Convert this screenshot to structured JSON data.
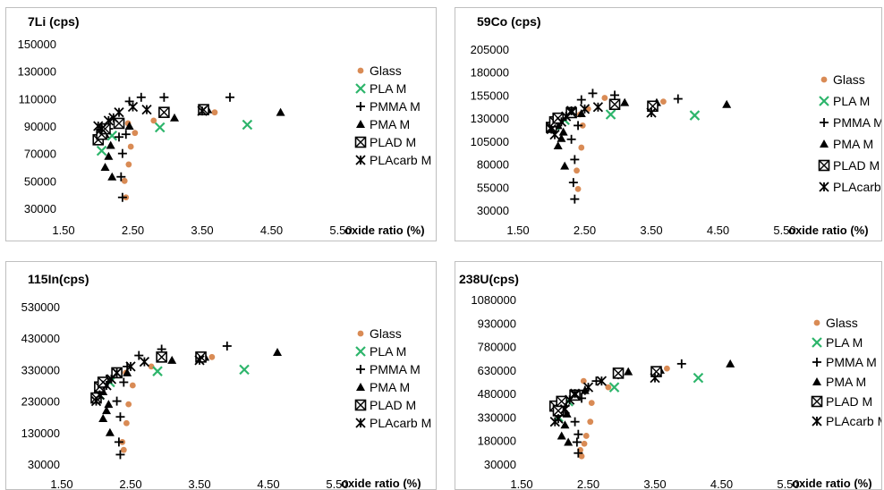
{
  "chart_data": [
    {
      "type": "scatter",
      "title": "7Li (cps)",
      "xlabel": "oxide ratio (%)",
      "ylabel": "",
      "xlim": [
        1.5,
        5.5
      ],
      "ylim": [
        30000,
        150000
      ],
      "xticks": [
        "1.50",
        "2.50",
        "3.50",
        "4.50",
        "5.50"
      ],
      "yticks": [
        "150000",
        "130000",
        "110000",
        "90000",
        "70000",
        "50000",
        "30000"
      ],
      "legend_position": "right",
      "series": [
        {
          "name": "Glass",
          "marker": "circle",
          "color": "#D98B55",
          "points": [
            [
              2.4,
              38000
            ],
            [
              2.38,
              50000
            ],
            [
              2.44,
              62000
            ],
            [
              2.47,
              75000
            ],
            [
              2.53,
              85000
            ],
            [
              2.8,
              94000
            ],
            [
              2.43,
              92000
            ],
            [
              3.68,
              100000
            ]
          ]
        },
        {
          "name": "PLA M",
          "marker": "x",
          "color": "#2DB56B",
          "points": [
            [
              2.05,
              72000
            ],
            [
              2.2,
              83000
            ],
            [
              2.89,
              89000
            ],
            [
              4.15,
              91000
            ]
          ]
        },
        {
          "name": "PMMA M",
          "marker": "plus",
          "color": "#000000",
          "points": [
            [
              2.35,
              38000
            ],
            [
              2.33,
              53000
            ],
            [
              2.35,
              70000
            ],
            [
              2.3,
              82000
            ],
            [
              2.4,
              84000
            ],
            [
              2.15,
              88000
            ],
            [
              2.45,
              108000
            ],
            [
              2.62,
              111000
            ],
            [
              2.95,
              111000
            ],
            [
              3.9,
              111000
            ]
          ]
        },
        {
          "name": "PMA M",
          "marker": "triangle",
          "color": "#000000",
          "points": [
            [
              2.2,
              53000
            ],
            [
              2.1,
              60000
            ],
            [
              2.15,
              68000
            ],
            [
              2.18,
              76000
            ],
            [
              2.1,
              84000
            ],
            [
              2.45,
              90000
            ],
            [
              3.1,
              96000
            ],
            [
              3.58,
              102000
            ],
            [
              4.63,
              100000
            ]
          ]
        },
        {
          "name": "PLAD M",
          "marker": "boxx",
          "color": "#000000",
          "points": [
            [
              2.0,
              80000
            ],
            [
              2.05,
              84000
            ],
            [
              2.1,
              88000
            ],
            [
              2.3,
              92000
            ],
            [
              2.95,
              100000
            ],
            [
              3.52,
              102000
            ]
          ]
        },
        {
          "name": "PLAcarb M",
          "marker": "star",
          "color": "#000000",
          "points": [
            [
              2.0,
              90000
            ],
            [
              2.05,
              88000
            ],
            [
              2.15,
              94000
            ],
            [
              2.22,
              96000
            ],
            [
              2.3,
              100000
            ],
            [
              2.5,
              104000
            ],
            [
              2.7,
              102000
            ],
            [
              3.5,
              101000
            ]
          ]
        }
      ]
    },
    {
      "type": "scatter",
      "title": "59Co (cps)",
      "xlabel": "oxide ratio (%)",
      "ylabel": "",
      "xlim": [
        1.5,
        5.5
      ],
      "ylim": [
        30000,
        205000
      ],
      "xticks": [
        "1.50",
        "2.50",
        "3.50",
        "4.50",
        "5.50"
      ],
      "yticks": [
        "205000",
        "180000",
        "155000",
        "130000",
        "105000",
        "80000",
        "55000",
        "30000"
      ],
      "legend_position": "right",
      "series": [
        {
          "name": "Glass",
          "marker": "circle",
          "color": "#D98B55",
          "points": [
            [
              2.4,
              53000
            ],
            [
              2.38,
              73000
            ],
            [
              2.45,
              98000
            ],
            [
              2.47,
              122000
            ],
            [
              2.55,
              140000
            ],
            [
              2.8,
              152000
            ],
            [
              2.43,
              134000
            ],
            [
              3.68,
              148000
            ]
          ]
        },
        {
          "name": "PLA M",
          "marker": "x",
          "color": "#2DB56B",
          "points": [
            [
              2.05,
              122000
            ],
            [
              2.2,
              128000
            ],
            [
              2.89,
              134000
            ],
            [
              4.15,
              133000
            ]
          ]
        },
        {
          "name": "PMMA M",
          "marker": "plus",
          "color": "#000000",
          "points": [
            [
              2.35,
              42000
            ],
            [
              2.33,
              60000
            ],
            [
              2.35,
              85000
            ],
            [
              2.3,
              107000
            ],
            [
              2.4,
              122000
            ],
            [
              2.15,
              128000
            ],
            [
              2.45,
              150000
            ],
            [
              2.62,
              157000
            ],
            [
              2.95,
              155000
            ],
            [
              3.9,
              151000
            ]
          ]
        },
        {
          "name": "PMA M",
          "marker": "triangle",
          "color": "#000000",
          "points": [
            [
              2.2,
              78000
            ],
            [
              2.1,
              100000
            ],
            [
              2.15,
              108000
            ],
            [
              2.18,
              115000
            ],
            [
              2.1,
              122000
            ],
            [
              2.45,
              135000
            ],
            [
              3.1,
              147000
            ],
            [
              3.58,
              147000
            ],
            [
              4.63,
              145000
            ]
          ]
        },
        {
          "name": "PLAD M",
          "marker": "boxx",
          "color": "#000000",
          "points": [
            [
              2.0,
              120000
            ],
            [
              2.05,
              126000
            ],
            [
              2.1,
              130000
            ],
            [
              2.3,
              136000
            ],
            [
              2.95,
              145000
            ],
            [
              3.52,
              143000
            ]
          ]
        },
        {
          "name": "PLAcarb M",
          "marker": "star",
          "color": "#000000",
          "points": [
            [
              2.0,
              118000
            ],
            [
              2.05,
              112000
            ],
            [
              2.15,
              126000
            ],
            [
              2.22,
              132000
            ],
            [
              2.3,
              138000
            ],
            [
              2.5,
              140000
            ],
            [
              2.7,
              142000
            ],
            [
              3.5,
              136000
            ]
          ]
        }
      ]
    },
    {
      "type": "scatter",
      "title": "115In(cps)",
      "xlabel": "oxide ratio (%)",
      "ylabel": "",
      "xlim": [
        1.5,
        5.5
      ],
      "ylim": [
        30000,
        530000
      ],
      "xticks": [
        "1.50",
        "2.50",
        "3.50",
        "4.50",
        "5.50"
      ],
      "yticks": [
        "530000",
        "430000",
        "330000",
        "230000",
        "130000",
        "30000"
      ],
      "legend_position": "right",
      "series": [
        {
          "name": "Glass",
          "marker": "circle",
          "color": "#D98B55",
          "points": [
            [
              2.4,
              75000
            ],
            [
              2.38,
              100000
            ],
            [
              2.44,
              160000
            ],
            [
              2.47,
              220000
            ],
            [
              2.53,
              280000
            ],
            [
              2.8,
              340000
            ],
            [
              2.43,
              320000
            ],
            [
              3.68,
              370000
            ]
          ]
        },
        {
          "name": "PLA M",
          "marker": "x",
          "color": "#2DB56B",
          "points": [
            [
              2.05,
              250000
            ],
            [
              2.2,
              290000
            ],
            [
              2.89,
              325000
            ],
            [
              4.15,
              330000
            ]
          ]
        },
        {
          "name": "PMMA M",
          "marker": "plus",
          "color": "#000000",
          "points": [
            [
              2.35,
              60000
            ],
            [
              2.33,
              100000
            ],
            [
              2.35,
              180000
            ],
            [
              2.3,
              230000
            ],
            [
              2.4,
              290000
            ],
            [
              2.15,
              300000
            ],
            [
              2.45,
              340000
            ],
            [
              2.62,
              375000
            ],
            [
              2.95,
              395000
            ],
            [
              3.9,
              405000
            ]
          ]
        },
        {
          "name": "PMA M",
          "marker": "triangle",
          "color": "#000000",
          "points": [
            [
              2.2,
              130000
            ],
            [
              2.1,
              175000
            ],
            [
              2.15,
              200000
            ],
            [
              2.18,
              220000
            ],
            [
              2.1,
              260000
            ],
            [
              2.45,
              320000
            ],
            [
              3.1,
              360000
            ],
            [
              3.58,
              370000
            ],
            [
              4.63,
              385000
            ]
          ]
        },
        {
          "name": "PLAD M",
          "marker": "boxx",
          "color": "#000000",
          "points": [
            [
              2.0,
              240000
            ],
            [
              2.05,
              275000
            ],
            [
              2.1,
              290000
            ],
            [
              2.3,
              320000
            ],
            [
              2.95,
              370000
            ],
            [
              3.52,
              370000
            ]
          ]
        },
        {
          "name": "PLAcarb M",
          "marker": "star",
          "color": "#000000",
          "points": [
            [
              2.0,
              230000
            ],
            [
              2.05,
              250000
            ],
            [
              2.15,
              280000
            ],
            [
              2.22,
              300000
            ],
            [
              2.3,
              320000
            ],
            [
              2.5,
              340000
            ],
            [
              2.7,
              355000
            ],
            [
              3.5,
              360000
            ]
          ]
        }
      ]
    },
    {
      "type": "scatter",
      "title": "238U(cps)",
      "xlabel": "oxide ratio (%)",
      "ylabel": "",
      "xlim": [
        1.5,
        5.5
      ],
      "ylim": [
        30000,
        1080000
      ],
      "xticks": [
        "1.50",
        "2.50",
        "3.50",
        "4.50",
        "5.50"
      ],
      "yticks": [
        "1080000",
        "930000",
        "780000",
        "630000",
        "480000",
        "330000",
        "180000",
        "30000"
      ],
      "legend_position": "right",
      "series": [
        {
          "name": "Glass",
          "marker": "circle",
          "color": "#D98B55",
          "points": [
            [
              2.4,
              80000
            ],
            [
              2.38,
              120000
            ],
            [
              2.44,
              160000
            ],
            [
              2.47,
              210000
            ],
            [
              2.53,
              300000
            ],
            [
              2.55,
              420000
            ],
            [
              2.8,
              520000
            ],
            [
              2.43,
              560000
            ],
            [
              3.68,
              640000
            ]
          ]
        },
        {
          "name": "PLA M",
          "marker": "x",
          "color": "#2DB56B",
          "points": [
            [
              2.05,
              330000
            ],
            [
              2.2,
              430000
            ],
            [
              2.89,
              520000
            ],
            [
              4.15,
              580000
            ]
          ]
        },
        {
          "name": "PMMA M",
          "marker": "plus",
          "color": "#000000",
          "points": [
            [
              2.35,
              100000
            ],
            [
              2.33,
              170000
            ],
            [
              2.35,
              220000
            ],
            [
              2.3,
              300000
            ],
            [
              2.4,
              450000
            ],
            [
              2.15,
              400000
            ],
            [
              2.45,
              500000
            ],
            [
              2.62,
              560000
            ],
            [
              2.95,
              600000
            ],
            [
              3.9,
              670000
            ]
          ]
        },
        {
          "name": "PMA M",
          "marker": "triangle",
          "color": "#000000",
          "points": [
            [
              2.2,
              170000
            ],
            [
              2.1,
              210000
            ],
            [
              2.15,
              280000
            ],
            [
              2.18,
              350000
            ],
            [
              2.1,
              420000
            ],
            [
              2.45,
              500000
            ],
            [
              3.1,
              620000
            ],
            [
              3.58,
              630000
            ],
            [
              4.63,
              670000
            ]
          ]
        },
        {
          "name": "PLAD M",
          "marker": "boxx",
          "color": "#000000",
          "points": [
            [
              2.0,
              400000
            ],
            [
              2.05,
              370000
            ],
            [
              2.1,
              430000
            ],
            [
              2.3,
              470000
            ],
            [
              2.95,
              610000
            ],
            [
              3.52,
              620000
            ]
          ]
        },
        {
          "name": "PLAcarb M",
          "marker": "star",
          "color": "#000000",
          "points": [
            [
              2.0,
              300000
            ],
            [
              2.05,
              320000
            ],
            [
              2.15,
              380000
            ],
            [
              2.22,
              440000
            ],
            [
              2.3,
              480000
            ],
            [
              2.5,
              520000
            ],
            [
              2.7,
              560000
            ],
            [
              3.5,
              580000
            ]
          ]
        }
      ]
    }
  ]
}
